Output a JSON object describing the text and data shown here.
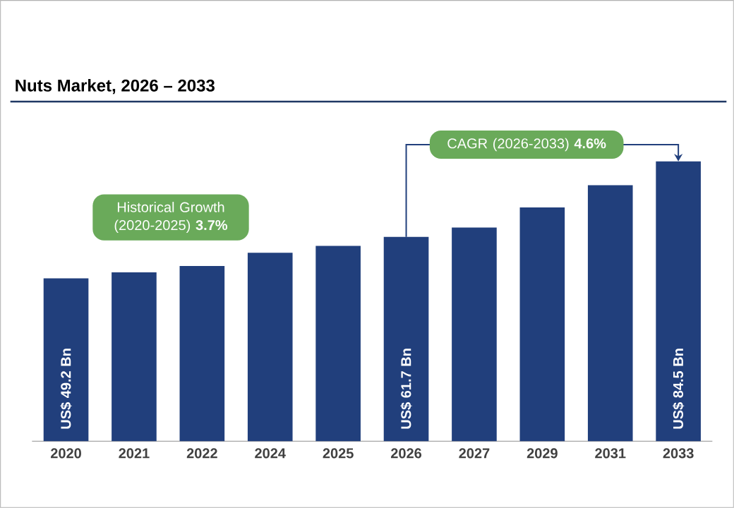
{
  "chart_data": {
    "type": "bar",
    "title": "Nuts Market, 2026 – 2033",
    "categories": [
      "2020",
      "2021",
      "2022",
      "2024",
      "2025",
      "2026",
      "2027",
      "2029",
      "2031",
      "2033"
    ],
    "values": [
      49.2,
      51.0,
      52.9,
      56.9,
      59.0,
      61.7,
      64.5,
      70.6,
      77.3,
      84.5
    ],
    "color": "#213f7c",
    "value_labels": [
      "US$ 49.2 Bn",
      null,
      null,
      null,
      null,
      "US$ 61.7 Bn",
      null,
      null,
      null,
      "US$ 84.5 Bn"
    ],
    "annotations": [
      "Historical Growth (2020-2025) **3.7%**",
      "CAGR (2026-2033) **4.6%**"
    ]
  }
}
